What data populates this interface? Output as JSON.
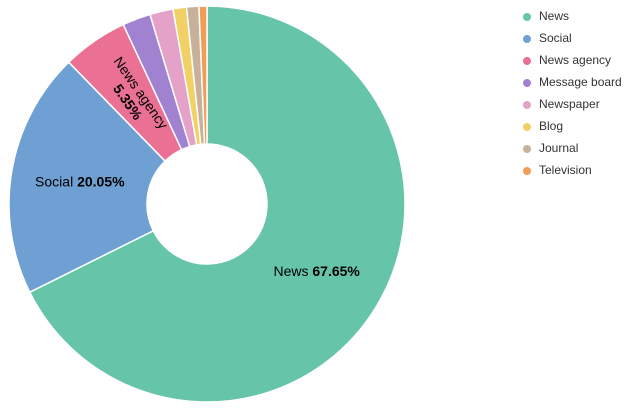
{
  "chart_data": {
    "type": "donut",
    "categories": [
      "News",
      "Social",
      "News agency",
      "Message board",
      "Newspaper",
      "Blog",
      "Journal",
      "Television"
    ],
    "values": [
      67.65,
      20.05,
      5.35,
      2.3,
      1.9,
      1.1,
      1.0,
      0.65
    ],
    "value_labels": [
      "67.65%",
      "20.05%",
      "5.35%",
      null,
      null,
      null,
      null,
      null
    ],
    "colors": [
      "#66c5a9",
      "#6fa0d3",
      "#ea7094",
      "#a182d0",
      "#e4a2c9",
      "#f1d166",
      "#c8b19b",
      "#f19d56"
    ],
    "legend": "right"
  }
}
